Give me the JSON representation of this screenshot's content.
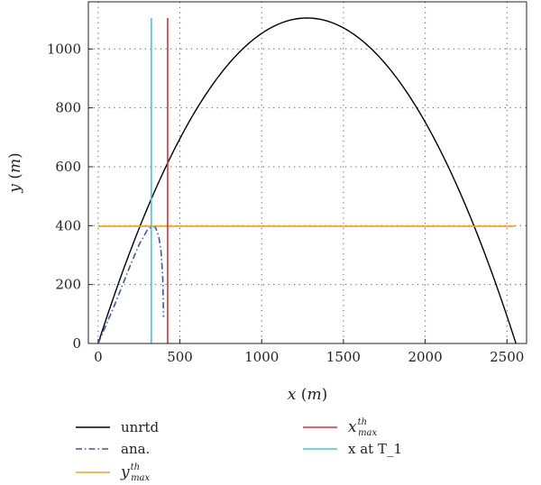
{
  "chart_data": {
    "type": "line",
    "xlabel": {
      "var": "x",
      "unit": "m"
    },
    "ylabel": {
      "var": "y",
      "unit": "m"
    },
    "xlim": [
      -60,
      2620
    ],
    "ylim": [
      0,
      1160
    ],
    "xticks": [
      0,
      500,
      1000,
      1500,
      2000,
      2500
    ],
    "yticks": [
      0,
      200,
      400,
      600,
      800,
      1000
    ],
    "grid": true,
    "legend_placement": "below plot, two columns",
    "series": [
      {
        "name": "unrtd",
        "kind": "projectile",
        "range": 2555,
        "peak_x": 1278,
        "peak_y": 1105,
        "color": "#000000",
        "dash": "solid"
      },
      {
        "name": "ana.",
        "kind": "curve",
        "x": [
          0,
          50,
          100,
          150,
          200,
          250,
          300,
          330,
          350,
          370,
          385,
          395,
          400
        ],
        "y": [
          0,
          65,
          130,
          200,
          270,
          335,
          385,
          398,
          395,
          365,
          310,
          220,
          90
        ],
        "color": "#3d5a9e",
        "dash": "dashdot"
      },
      {
        "name_var": "y",
        "name_sup": "th",
        "name_sub": "max",
        "kind": "hline",
        "y": 398,
        "x_from": 0,
        "x_to": 2550,
        "color": "#f0a020",
        "dash": "solid"
      },
      {
        "name_var": "x",
        "name_sup": "th",
        "name_sub": "max",
        "kind": "vline",
        "x": 425,
        "y_from": 0,
        "y_to": 1105,
        "color": "#e03030",
        "dash": "solid"
      },
      {
        "name": "x at T_1",
        "kind": "vline",
        "x": 325,
        "y_from": 0,
        "y_to": 1105,
        "color": "#40c8d8",
        "dash": "solid"
      }
    ],
    "legend": [
      {
        "series": 0,
        "column": 0,
        "row": 0
      },
      {
        "series": 1,
        "column": 0,
        "row": 1
      },
      {
        "series": 2,
        "column": 0,
        "row": 2
      },
      {
        "series": 3,
        "column": 1,
        "row": 0
      },
      {
        "series": 4,
        "column": 1,
        "row": 1
      }
    ]
  }
}
